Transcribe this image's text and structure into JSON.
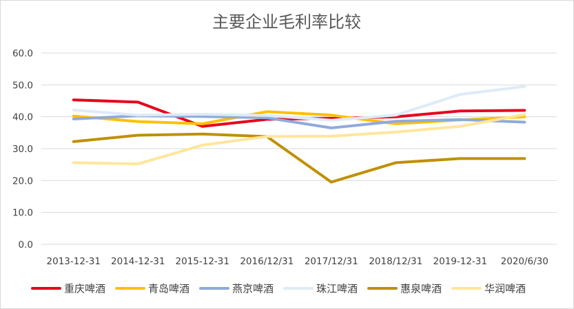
{
  "chart_data": {
    "type": "line",
    "title": "主要企业毛利率比较",
    "xlabel": "",
    "ylabel": "",
    "categories": [
      "2013-12-31",
      "2014-12-31",
      "2015-12-31",
      "2016/12/31",
      "2017/12/31",
      "2018/12/31",
      "2019-12-31",
      "2020/6/30"
    ],
    "ylim": [
      0,
      60
    ],
    "yticks": [
      "0.0",
      "10.0",
      "20.0",
      "30.0",
      "40.0",
      "50.0",
      "60.0"
    ],
    "grid": true,
    "legend_position": "bottom",
    "series": [
      {
        "name": "重庆啤酒",
        "color": "#e8001c",
        "values": [
          45.3,
          44.6,
          37.0,
          39.2,
          39.5,
          40.0,
          41.8,
          42.0
        ]
      },
      {
        "name": "青岛啤酒",
        "color": "#ffc000",
        "values": [
          40.2,
          38.5,
          37.8,
          41.6,
          40.5,
          37.8,
          39.0,
          40.0
        ]
      },
      {
        "name": "燕京啤酒",
        "color": "#8faadc",
        "values": [
          39.3,
          40.3,
          40.1,
          39.7,
          36.5,
          38.6,
          39.1,
          38.3
        ]
      },
      {
        "name": "珠江啤酒",
        "color": "#deebf7",
        "values": [
          42.1,
          40.5,
          40.8,
          40.4,
          38.9,
          40.5,
          47.0,
          49.5
        ]
      },
      {
        "name": "惠泉啤酒",
        "color": "#bf9000",
        "values": [
          32.2,
          34.2,
          34.6,
          33.8,
          19.5,
          25.6,
          26.9,
          26.9
        ]
      },
      {
        "name": "华润啤酒",
        "color": "#ffe699",
        "values": [
          25.6,
          25.2,
          31.1,
          33.8,
          33.9,
          35.2,
          37.0,
          40.7
        ]
      }
    ]
  }
}
